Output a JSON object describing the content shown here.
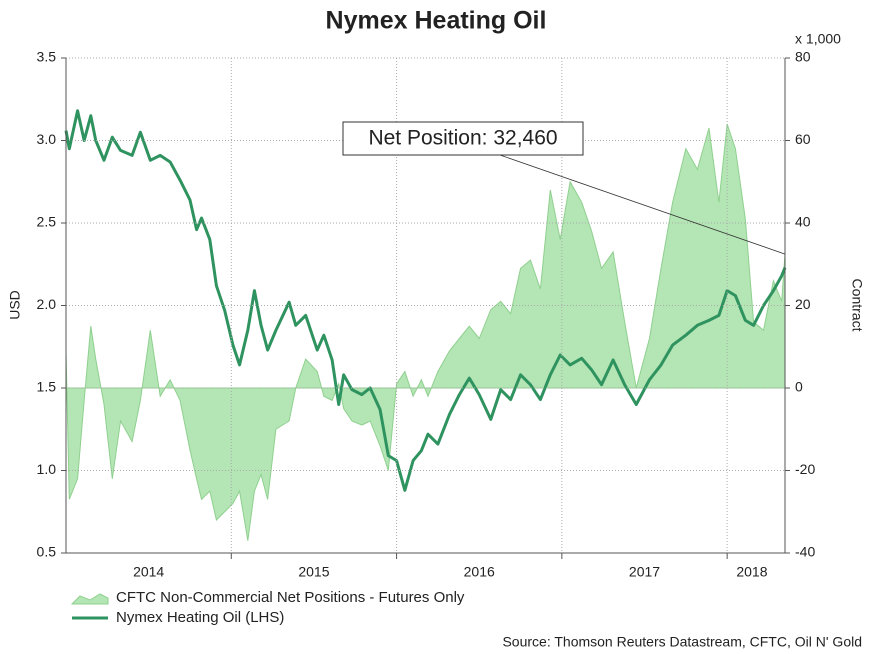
{
  "chart_data": {
    "type": "line-area",
    "title": "Nymex Heating Oil",
    "ylabel": "USD",
    "y2label": "Contract",
    "y2unit": "x 1,000",
    "annotation": "Net Position: 32,460",
    "source": "Source: Thomson Reuters Datastream, CFTC, Oil N' Gold",
    "x": [
      2014.0,
      2014.02,
      2014.07,
      2014.11,
      2014.15,
      2014.18,
      2014.23,
      2014.28,
      2014.33,
      2014.4,
      2014.45,
      2014.51,
      2014.57,
      2014.63,
      2014.69,
      2014.75,
      2014.79,
      2014.82,
      2014.87,
      2014.91,
      2014.96,
      2015.01,
      2015.05,
      2015.1,
      2015.14,
      2015.18,
      2015.22,
      2015.27,
      2015.35,
      2015.39,
      2015.45,
      2015.52,
      2015.56,
      2015.61,
      2015.65,
      2015.68,
      2015.73,
      2015.79,
      2015.84,
      2015.9,
      2015.95,
      2016.0,
      2016.05,
      2016.1,
      2016.15,
      2016.19,
      2016.25,
      2016.32,
      2016.38,
      2016.44,
      2016.5,
      2016.57,
      2016.63,
      2016.69,
      2016.75,
      2016.81,
      2016.87,
      2016.93,
      2016.99,
      2017.05,
      2017.12,
      2017.18,
      2017.24,
      2017.31,
      2017.38,
      2017.45,
      2017.53,
      2017.6,
      2017.67,
      2017.75,
      2017.82,
      2017.89,
      2017.95,
      2018.0,
      2018.05,
      2018.11,
      2018.16,
      2018.22,
      2018.28,
      2018.33,
      2018.35
    ],
    "series": [
      {
        "name": "CFTC Non-Commercial Net Positions - Futures Only",
        "type": "area",
        "axis": "y2",
        "color": "#b4e5b4",
        "edge": "#8fd08f",
        "values": [
          9,
          -27,
          -22,
          -3,
          15,
          7,
          -4,
          -22,
          -8,
          -13,
          -3,
          14,
          -2,
          2,
          -3,
          -15,
          -22,
          -27,
          -25,
          -32,
          -30,
          -28,
          -25,
          -37,
          -25,
          -21,
          -27,
          -10,
          -8,
          0,
          7,
          4,
          -2,
          -3,
          1,
          -5,
          -8,
          -9,
          -8,
          -14,
          -20,
          1,
          4,
          -2,
          2,
          -2,
          4,
          9,
          12,
          15,
          12,
          19,
          21,
          18,
          29,
          31,
          24,
          48,
          36,
          50,
          45,
          38,
          29,
          33,
          16,
          0,
          12,
          29,
          45,
          58,
          53,
          63,
          45,
          64,
          58,
          41,
          16,
          14,
          26,
          21,
          32.46
        ]
      },
      {
        "name": "Nymex Heating Oil (LHS)",
        "type": "line",
        "axis": "y",
        "color": "#2f9360",
        "values": [
          3.06,
          2.95,
          3.18,
          3.0,
          3.15,
          3.0,
          2.88,
          3.02,
          2.94,
          2.91,
          3.05,
          2.88,
          2.91,
          2.87,
          2.76,
          2.64,
          2.46,
          2.53,
          2.4,
          2.12,
          1.97,
          1.76,
          1.64,
          1.85,
          2.09,
          1.88,
          1.73,
          1.85,
          2.02,
          1.88,
          1.94,
          1.73,
          1.82,
          1.67,
          1.4,
          1.58,
          1.49,
          1.46,
          1.5,
          1.37,
          1.09,
          1.06,
          0.88,
          1.06,
          1.12,
          1.22,
          1.16,
          1.34,
          1.46,
          1.56,
          1.46,
          1.31,
          1.49,
          1.43,
          1.58,
          1.52,
          1.43,
          1.58,
          1.7,
          1.64,
          1.68,
          1.61,
          1.52,
          1.67,
          1.52,
          1.4,
          1.55,
          1.64,
          1.76,
          1.82,
          1.88,
          1.91,
          1.94,
          2.09,
          2.06,
          1.91,
          1.88,
          2.0,
          2.09,
          2.18,
          2.23
        ]
      }
    ],
    "xlim": [
      2014.0,
      2018.35
    ],
    "xticks": [
      {
        "value": 2014.5,
        "label": "2014"
      },
      {
        "value": 2015.5,
        "label": "2015"
      },
      {
        "value": 2016.5,
        "label": "2016"
      },
      {
        "value": 2017.5,
        "label": "2017"
      },
      {
        "value": 2018.15,
        "label": "2018"
      }
    ],
    "xgrid": [
      2015,
      2016,
      2017,
      2018
    ],
    "ylim": [
      0.5,
      3.5
    ],
    "yticks": [
      0.5,
      {
        "value": 1.0,
        "label": "1.0"
      },
      1.5,
      {
        "value": 2.0,
        "label": "2.0"
      },
      2.5,
      {
        "value": 3.0,
        "label": "3.0"
      },
      3.5
    ],
    "y2lim": [
      -40,
      80
    ],
    "y2ticks": [
      -40,
      -20,
      0,
      20,
      40,
      60,
      80
    ],
    "grid": true
  }
}
